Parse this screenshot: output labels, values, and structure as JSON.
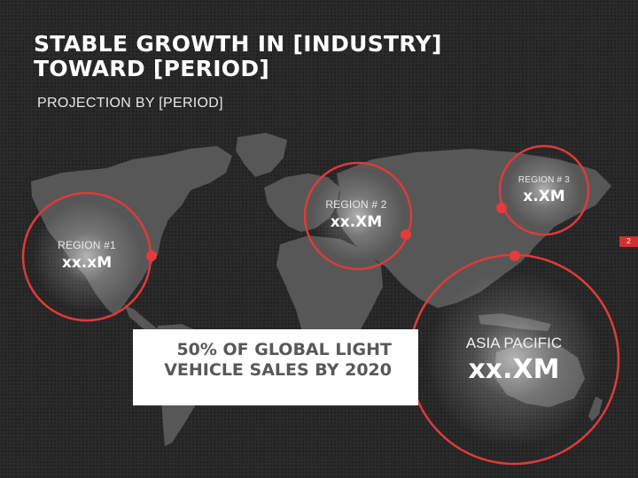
{
  "slide": {
    "title_lines": [
      "STABLE GROWTH IN [INDUSTRY]",
      "TOWARD [PERIOD]"
    ],
    "subtitle": "PROJECTION BY [PERIOD]",
    "page_number": "2"
  },
  "regions": [
    {
      "label": "REGION #1",
      "value": "xx.xM"
    },
    {
      "label": "REGION # 2",
      "value": "xx.XM"
    },
    {
      "label": "REGION # 3",
      "value": "x.XM"
    },
    {
      "label": "ASIA PACIFIC",
      "value": "xx.XM"
    }
  ],
  "callout": {
    "line1": "50% OF GLOBAL LIGHT",
    "line2": "VEHICLE SALES BY 2020"
  },
  "colors": {
    "accent": "#e03a3a",
    "background": "#2a2a2a",
    "continents": "#575757",
    "callout_text": "#585858"
  }
}
